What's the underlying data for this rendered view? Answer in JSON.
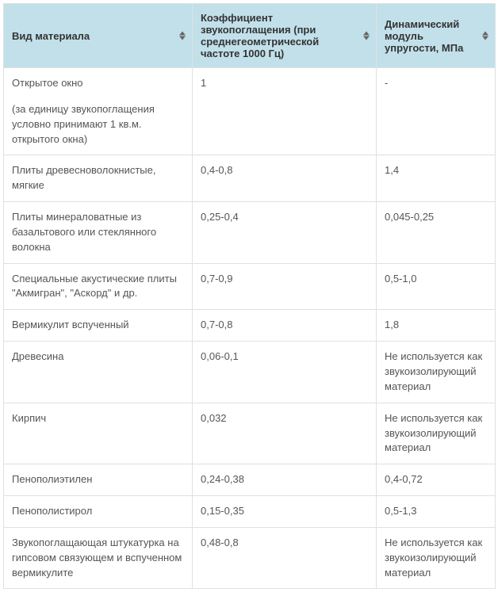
{
  "table": {
    "columns": [
      "Вид материала",
      "Коэффициент звукопоглащения (при среднегеометрической частоте 1000 Гц)",
      "Динамический модуль упругости, МПа"
    ],
    "rows": [
      {
        "material": "Открытое окно",
        "material_note": "(за единицу звукопоглащения условно принимают 1 кв.м. открытого окна)",
        "coeff": "1",
        "modulus": "-"
      },
      {
        "material": "Плиты древесноволокнистые, мягкие",
        "coeff": "0,4-0,8",
        "modulus": "1,4"
      },
      {
        "material": "Плиты минераловатные из базальтового или стеклянного волокна",
        "coeff": "0,25-0,4",
        "modulus": "0,045-0,25"
      },
      {
        "material": "Специальные акустические плиты \"Акмигран\", \"Аскорд\" и др.",
        "coeff": "0,7-0,9",
        "modulus": "0,5-1,0"
      },
      {
        "material": "Вермикулит вспученный",
        "coeff": "0,7-0,8",
        "modulus": "1,8"
      },
      {
        "material": "Древесина",
        "coeff": "0,06-0,1",
        "modulus": "Не используется как звукоизолирующий материал"
      },
      {
        "material": "Кирпич",
        "coeff": "0,032",
        "modulus": "Не используется как звукоизолирующий материал"
      },
      {
        "material": "Пенополиэтилен",
        "coeff": "0,24-0,38",
        "modulus": "0,4-0,72"
      },
      {
        "material": "Пенополистирол",
        "coeff": "0,15-0,35",
        "modulus": "0,5-1,3"
      },
      {
        "material": "Звукопоглащающая штукатурка на гипсовом связующем и вспученном вермикулите",
        "coeff": "0,48-0,8",
        "modulus": "Не используется как звукоизолирующий материал"
      }
    ]
  }
}
